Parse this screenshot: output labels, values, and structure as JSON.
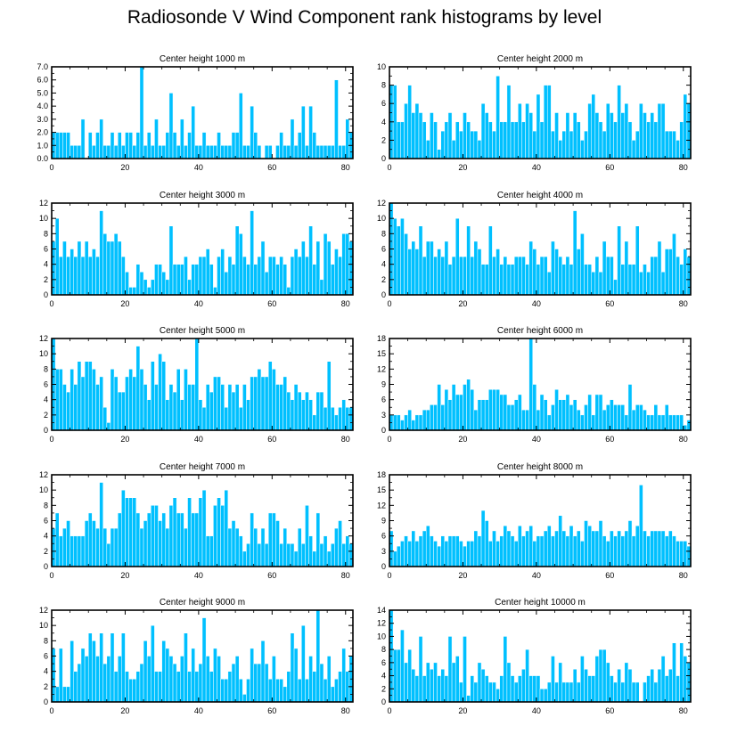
{
  "title": "Radiosonde V Wind Component rank histograms by level",
  "colors": {
    "bar": "#00c0ff",
    "bar_edge": "#ffffff",
    "axis": "#000000"
  },
  "chart_data": [
    {
      "type": "bar",
      "title": "Center height 1000 m",
      "xlim": [
        0,
        82
      ],
      "ylim": [
        0,
        7
      ],
      "yticks": [
        0,
        1,
        2,
        3,
        4,
        5,
        6,
        7
      ],
      "ytick_labels": [
        "0.0",
        "1.0",
        "2.0",
        "3.0",
        "4.0",
        "5.0",
        "6.0",
        "7.0"
      ],
      "xticks": [
        0,
        20,
        40,
        60,
        80
      ],
      "values": [
        2,
        2,
        2,
        2,
        2,
        1,
        1,
        1,
        3,
        0,
        2,
        1,
        2,
        3,
        1,
        1,
        2,
        1,
        2,
        1,
        2,
        2,
        1,
        2,
        7,
        1,
        2,
        1,
        3,
        1,
        1,
        2,
        5,
        2,
        1,
        3,
        1,
        2,
        4,
        1,
        1,
        2,
        1,
        1,
        1,
        2,
        1,
        1,
        1,
        2,
        2,
        5,
        1,
        1,
        4,
        2,
        1,
        0,
        1,
        1,
        0,
        1,
        2,
        1,
        1,
        3,
        1,
        2,
        4,
        1,
        4,
        2,
        1,
        1,
        1,
        1,
        1,
        6,
        1,
        1,
        3,
        2
      ]
    },
    {
      "type": "bar",
      "title": "Center height 2000 m",
      "xlim": [
        0,
        82
      ],
      "ylim": [
        0,
        10
      ],
      "yticks": [
        0,
        2,
        4,
        6,
        8,
        10
      ],
      "ytick_labels": [
        "0",
        "2",
        "4",
        "6",
        "8",
        "10"
      ],
      "xticks": [
        0,
        20,
        40,
        60,
        80
      ],
      "values": [
        8,
        8,
        4,
        4,
        6,
        8,
        5,
        6,
        5,
        4,
        2,
        5,
        4,
        1,
        3,
        4,
        5,
        2,
        4,
        3,
        5,
        4,
        3,
        3,
        2,
        6,
        5,
        4,
        3,
        9,
        4,
        4,
        8,
        4,
        4,
        6,
        4,
        6,
        5,
        3,
        7,
        4,
        8,
        8,
        3,
        5,
        2,
        3,
        5,
        3,
        5,
        4,
        2,
        3,
        6,
        7,
        5,
        4,
        3,
        6,
        5,
        4,
        8,
        5,
        6,
        4,
        2,
        3,
        6,
        5,
        4,
        5,
        4,
        6,
        6,
        3,
        3,
        3,
        2,
        4,
        7,
        6
      ]
    },
    {
      "type": "bar",
      "title": "Center height 3000 m",
      "xlim": [
        0,
        82
      ],
      "ylim": [
        0,
        12
      ],
      "yticks": [
        0,
        2,
        4,
        6,
        8,
        10,
        12
      ],
      "ytick_labels": [
        "0",
        "2",
        "4",
        "6",
        "8",
        "10",
        "12"
      ],
      "xticks": [
        0,
        20,
        40,
        60,
        80
      ],
      "values": [
        7,
        10,
        5,
        7,
        5,
        6,
        5,
        7,
        5,
        7,
        5,
        6,
        5,
        11,
        8,
        7,
        7,
        8,
        7,
        5,
        3,
        1,
        1,
        4,
        3,
        2,
        1,
        2,
        4,
        4,
        3,
        2,
        9,
        4,
        4,
        4,
        5,
        2,
        4,
        4,
        5,
        5,
        6,
        4,
        1,
        5,
        6,
        3,
        5,
        4,
        9,
        8,
        5,
        4,
        11,
        4,
        5,
        7,
        3,
        5,
        5,
        4,
        5,
        4,
        1,
        5,
        6,
        5,
        7,
        5,
        9,
        4,
        7,
        2,
        8,
        7,
        4,
        6,
        5,
        8,
        8,
        7
      ]
    },
    {
      "type": "bar",
      "title": "Center height 4000 m",
      "xlim": [
        0,
        82
      ],
      "ylim": [
        0,
        12
      ],
      "yticks": [
        0,
        2,
        4,
        6,
        8,
        10,
        12
      ],
      "ytick_labels": [
        "0",
        "2",
        "4",
        "6",
        "8",
        "10",
        "12"
      ],
      "xticks": [
        0,
        20,
        40,
        60,
        80
      ],
      "values": [
        12,
        10,
        9,
        10,
        8,
        6,
        7,
        6,
        9,
        5,
        7,
        7,
        5,
        6,
        5,
        7,
        4,
        5,
        10,
        5,
        5,
        9,
        5,
        7,
        6,
        4,
        4,
        9,
        5,
        6,
        4,
        5,
        4,
        4,
        5,
        5,
        5,
        4,
        7,
        6,
        4,
        5,
        5,
        3,
        7,
        6,
        5,
        4,
        5,
        4,
        11,
        6,
        8,
        4,
        4,
        3,
        5,
        3,
        7,
        5,
        5,
        2,
        9,
        4,
        7,
        4,
        4,
        9,
        3,
        4,
        3,
        5,
        5,
        7,
        3,
        6,
        6,
        8,
        5,
        4,
        6,
        5
      ]
    },
    {
      "type": "bar",
      "title": "Center height 5000 m",
      "xlim": [
        0,
        82
      ],
      "ylim": [
        0,
        12
      ],
      "yticks": [
        0,
        2,
        4,
        6,
        8,
        10,
        12
      ],
      "ytick_labels": [
        "0",
        "2",
        "4",
        "6",
        "8",
        "10",
        "12"
      ],
      "xticks": [
        0,
        20,
        40,
        60,
        80
      ],
      "values": [
        12,
        8,
        8,
        6,
        5,
        8,
        6,
        9,
        7,
        9,
        9,
        8,
        6,
        7,
        3,
        1,
        8,
        7,
        5,
        5,
        7,
        8,
        7,
        11,
        8,
        6,
        4,
        9,
        6,
        10,
        9,
        4,
        6,
        5,
        8,
        4,
        8,
        6,
        6,
        12,
        4,
        3,
        6,
        5,
        7,
        7,
        6,
        3,
        6,
        5,
        6,
        3,
        6,
        4,
        7,
        7,
        8,
        7,
        7,
        9,
        8,
        6,
        6,
        7,
        5,
        4,
        6,
        5,
        4,
        5,
        4,
        2,
        5,
        5,
        3,
        9,
        3,
        2,
        3,
        4,
        3,
        3
      ]
    },
    {
      "type": "bar",
      "title": "Center height 6000 m",
      "xlim": [
        0,
        82
      ],
      "ylim": [
        0,
        18
      ],
      "yticks": [
        0,
        3,
        6,
        9,
        12,
        15,
        18
      ],
      "ytick_labels": [
        "0",
        "3",
        "6",
        "9",
        "12",
        "15",
        "18"
      ],
      "xticks": [
        0,
        20,
        40,
        60,
        80
      ],
      "values": [
        3,
        3,
        3,
        2,
        3,
        4,
        2,
        3,
        3,
        4,
        4,
        5,
        5,
        9,
        5,
        8,
        6,
        9,
        7,
        7,
        9,
        10,
        8,
        4,
        6,
        6,
        6,
        8,
        8,
        8,
        7,
        7,
        5,
        5,
        6,
        7,
        4,
        4,
        18,
        9,
        4,
        7,
        6,
        3,
        5,
        8,
        6,
        6,
        7,
        5,
        6,
        4,
        3,
        5,
        7,
        3,
        7,
        7,
        4,
        5,
        6,
        5,
        5,
        5,
        3,
        9,
        4,
        5,
        5,
        4,
        3,
        3,
        5,
        3,
        3,
        5,
        3,
        3,
        3,
        3,
        1,
        2
      ]
    },
    {
      "type": "bar",
      "title": "Center height 7000 m",
      "xlim": [
        0,
        82
      ],
      "ylim": [
        0,
        12
      ],
      "yticks": [
        0,
        2,
        4,
        6,
        8,
        10,
        12
      ],
      "ytick_labels": [
        "0",
        "2",
        "4",
        "6",
        "8",
        "10",
        "12"
      ],
      "xticks": [
        0,
        20,
        40,
        60,
        80
      ],
      "values": [
        5,
        7,
        4,
        5,
        6,
        4,
        4,
        4,
        4,
        6,
        7,
        6,
        5,
        11,
        5,
        3,
        5,
        5,
        7,
        10,
        9,
        9,
        9,
        7,
        5,
        6,
        7,
        8,
        8,
        6,
        7,
        5,
        8,
        9,
        7,
        7,
        5,
        9,
        7,
        7,
        9,
        10,
        4,
        4,
        8,
        9,
        8,
        10,
        5,
        6,
        5,
        4,
        2,
        3,
        7,
        5,
        3,
        5,
        3,
        7,
        7,
        6,
        3,
        5,
        3,
        3,
        2,
        5,
        3,
        8,
        4,
        2,
        7,
        3,
        4,
        2,
        3,
        5,
        6,
        3,
        4,
        3
      ]
    },
    {
      "type": "bar",
      "title": "Center height 8000 m",
      "xlim": [
        0,
        82
      ],
      "ylim": [
        0,
        18
      ],
      "yticks": [
        0,
        3,
        6,
        9,
        12,
        15,
        18
      ],
      "ytick_labels": [
        "0",
        "3",
        "6",
        "9",
        "12",
        "15",
        "18"
      ],
      "xticks": [
        0,
        20,
        40,
        60,
        80
      ],
      "values": [
        7,
        3,
        4,
        5,
        6,
        5,
        7,
        5,
        6,
        7,
        8,
        6,
        5,
        4,
        6,
        5,
        6,
        6,
        6,
        5,
        4,
        5,
        5,
        7,
        6,
        11,
        9,
        5,
        7,
        5,
        6,
        8,
        7,
        6,
        5,
        8,
        6,
        7,
        8,
        5,
        6,
        6,
        7,
        8,
        6,
        7,
        10,
        7,
        6,
        8,
        6,
        7,
        5,
        9,
        8,
        7,
        7,
        9,
        6,
        5,
        7,
        6,
        7,
        6,
        7,
        9,
        6,
        8,
        16,
        7,
        6,
        7,
        7,
        7,
        7,
        6,
        7,
        6,
        5,
        5,
        5,
        4
      ]
    },
    {
      "type": "bar",
      "title": "Center height 9000 m",
      "xlim": [
        0,
        82
      ],
      "ylim": [
        0,
        12
      ],
      "yticks": [
        0,
        2,
        4,
        6,
        8,
        10,
        12
      ],
      "ytick_labels": [
        "0",
        "2",
        "4",
        "6",
        "8",
        "10",
        "12"
      ],
      "xticks": [
        0,
        20,
        40,
        60,
        80
      ],
      "values": [
        7,
        2,
        7,
        2,
        2,
        8,
        4,
        5,
        7,
        6,
        9,
        8,
        6,
        9,
        5,
        6,
        9,
        4,
        6,
        9,
        4,
        3,
        3,
        4,
        5,
        8,
        6,
        10,
        4,
        4,
        8,
        7,
        6,
        5,
        4,
        6,
        9,
        4,
        7,
        4,
        5,
        11,
        6,
        4,
        7,
        6,
        3,
        3,
        4,
        5,
        6,
        3,
        1,
        3,
        7,
        5,
        5,
        8,
        5,
        3,
        6,
        3,
        3,
        2,
        4,
        9,
        7,
        3,
        10,
        3,
        6,
        4,
        12,
        5,
        3,
        6,
        2,
        3,
        4,
        7,
        4,
        6
      ]
    },
    {
      "type": "bar",
      "title": "Center height 10000 m",
      "xlim": [
        0,
        82
      ],
      "ylim": [
        0,
        14
      ],
      "yticks": [
        0,
        2,
        4,
        6,
        8,
        10,
        12,
        14
      ],
      "ytick_labels": [
        "0",
        "2",
        "4",
        "6",
        "8",
        "10",
        "12",
        "14"
      ],
      "xticks": [
        0,
        20,
        40,
        60,
        80
      ],
      "values": [
        14,
        8,
        8,
        11,
        6,
        8,
        5,
        4,
        10,
        4,
        6,
        5,
        6,
        4,
        5,
        4,
        10,
        6,
        7,
        3,
        10,
        1,
        4,
        3,
        6,
        5,
        4,
        3,
        3,
        2,
        4,
        10,
        6,
        4,
        3,
        4,
        5,
        8,
        4,
        4,
        4,
        2,
        2,
        3,
        7,
        3,
        6,
        3,
        3,
        3,
        5,
        3,
        7,
        5,
        4,
        4,
        7,
        8,
        8,
        6,
        4,
        3,
        5,
        3,
        6,
        5,
        3,
        3,
        0,
        3,
        4,
        5,
        3,
        5,
        7,
        4,
        5,
        9,
        4,
        9,
        7,
        6
      ]
    }
  ]
}
